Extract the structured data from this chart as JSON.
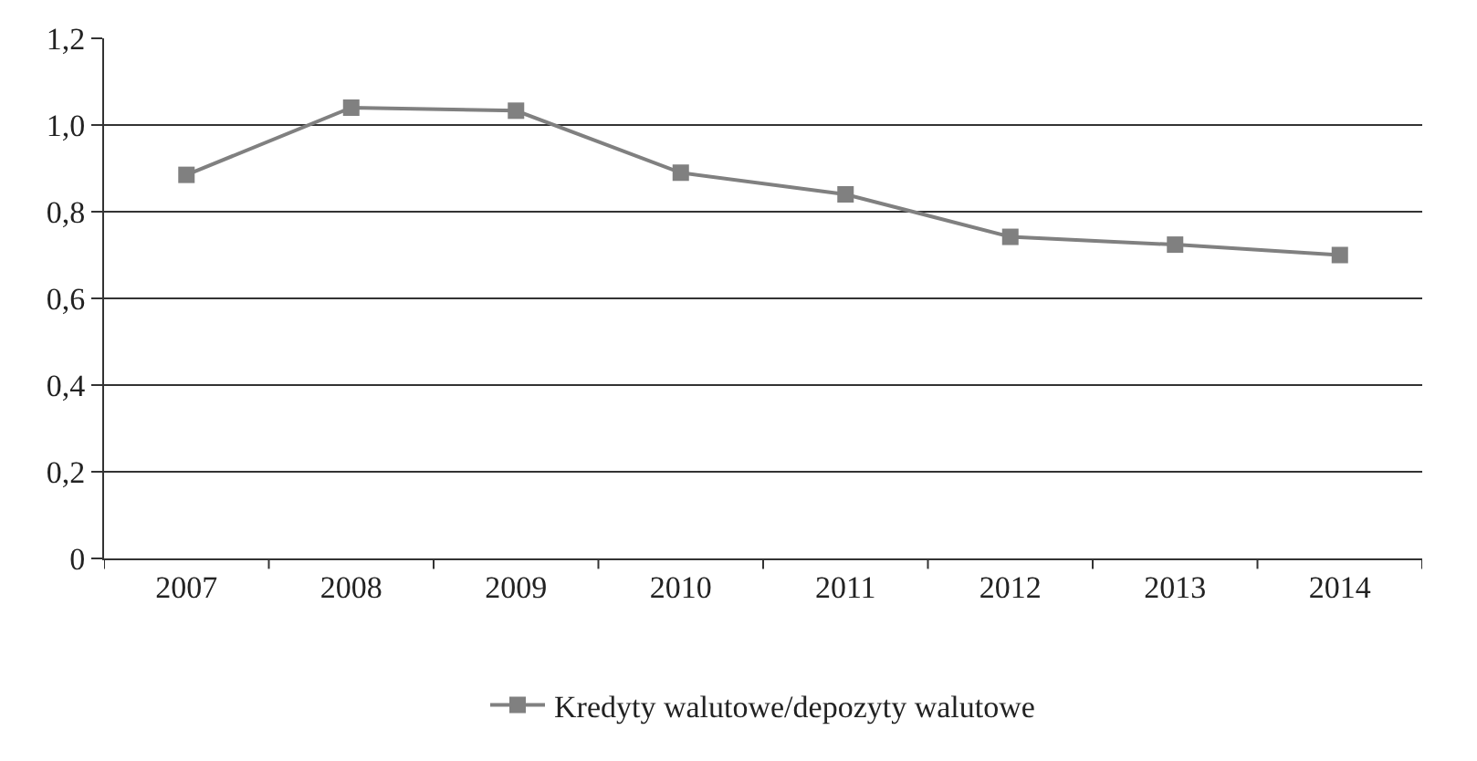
{
  "chart_data": {
    "type": "line",
    "categories": [
      "2007",
      "2008",
      "2009",
      "2010",
      "2011",
      "2012",
      "2013",
      "2014"
    ],
    "series": [
      {
        "name": "Kredyty walutowe/depozyty walutowe",
        "color": "#808080",
        "values": [
          0.885,
          1.04,
          1.033,
          0.89,
          0.84,
          0.742,
          0.724,
          0.7
        ]
      }
    ],
    "ylim": [
      0,
      1.2
    ],
    "yticks": [
      0,
      {
        "value": 0.2,
        "label": "0,2"
      },
      {
        "value": 0.4,
        "label": "0,4"
      },
      {
        "value": 0.6,
        "label": "0,6"
      },
      {
        "value": 0.8,
        "label": "0,8"
      },
      {
        "value": 1.0,
        "label": "1,0"
      },
      {
        "value": 1.2,
        "label": "1,2"
      }
    ],
    "grid": "y",
    "legend": "bottom",
    "marker": "square",
    "line_style": "solid"
  }
}
